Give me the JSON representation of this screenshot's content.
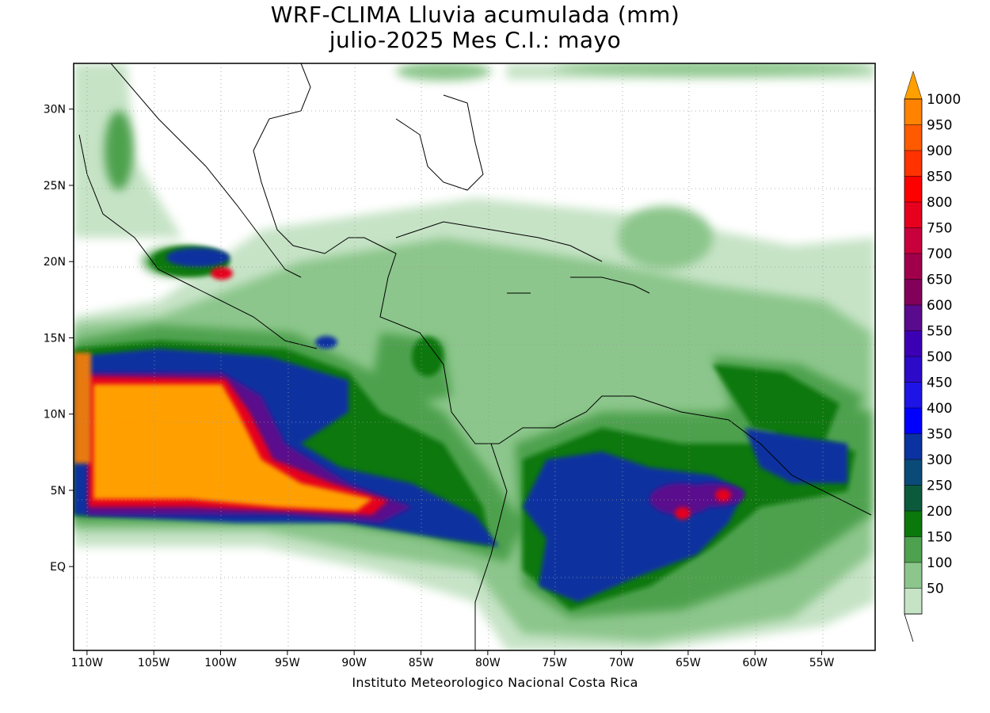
{
  "title": {
    "line1": "WRF-CLIMA Lluvia acumulada (mm)",
    "line2": "julio-2025 Mes C.I.: mayo"
  },
  "credit": "Instituto Meteorologico Nacional Costa Rica",
  "map": {
    "lon_range": [
      -111,
      -51
    ],
    "lat_range": [
      -5.5,
      33
    ],
    "lat_ticks": [
      {
        "value": 30,
        "label": "30N"
      },
      {
        "value": 25,
        "label": "25N"
      },
      {
        "value": 20,
        "label": "20N"
      },
      {
        "value": 15,
        "label": "15N"
      },
      {
        "value": 10,
        "label": "10N"
      },
      {
        "value": 5,
        "label": "5N"
      },
      {
        "value": 0,
        "label": "EQ"
      }
    ],
    "lon_ticks": [
      {
        "value": -110,
        "label": "110W"
      },
      {
        "value": -105,
        "label": "105W"
      },
      {
        "value": -100,
        "label": "100W"
      },
      {
        "value": -95,
        "label": "95W"
      },
      {
        "value": -90,
        "label": "90W"
      },
      {
        "value": -85,
        "label": "85W"
      },
      {
        "value": -80,
        "label": "80W"
      },
      {
        "value": -75,
        "label": "75W"
      },
      {
        "value": -70,
        "label": "70W"
      },
      {
        "value": -65,
        "label": "65W"
      },
      {
        "value": -60,
        "label": "60W"
      },
      {
        "value": -55,
        "label": "55W"
      }
    ]
  },
  "colorbar": {
    "levels": [
      {
        "label": "50",
        "color": "#c6e3c6"
      },
      {
        "label": "100",
        "color": "#8cc68c"
      },
      {
        "label": "150",
        "color": "#4ea14e"
      },
      {
        "label": "200",
        "color": "#0a780a"
      },
      {
        "label": "250",
        "color": "#0b5a3c"
      },
      {
        "label": "300",
        "color": "#0a4a78"
      },
      {
        "label": "350",
        "color": "#0a32a0"
      },
      {
        "label": "400",
        "color": "#0000ff"
      },
      {
        "label": "450",
        "color": "#1e14e6"
      },
      {
        "label": "500",
        "color": "#2d0ac8"
      },
      {
        "label": "550",
        "color": "#3c00b4"
      },
      {
        "label": "600",
        "color": "#5a0a8c"
      },
      {
        "label": "650",
        "color": "#82005a"
      },
      {
        "label": "700",
        "color": "#a0004b"
      },
      {
        "label": "750",
        "color": "#c8003c"
      },
      {
        "label": "800",
        "color": "#e6001e"
      },
      {
        "label": "850",
        "color": "#ff0000"
      },
      {
        "label": "900",
        "color": "#ff3200"
      },
      {
        "label": "950",
        "color": "#ff5a00"
      },
      {
        "label": "1000",
        "color": "#ff8200"
      }
    ],
    "over_color": "#ffa000"
  }
}
